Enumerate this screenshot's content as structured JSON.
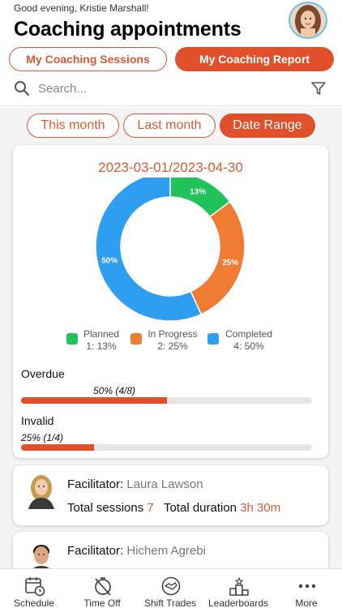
{
  "header": {
    "greeting": "Good evening, Kristie Marshall!",
    "title": "Coaching appointments"
  },
  "segments": {
    "sessions": "My Coaching Sessions",
    "report": "My Coaching Report"
  },
  "search": {
    "placeholder": "Search..."
  },
  "date_filters": [
    "This month",
    "Last month",
    "Date Range"
  ],
  "colors": {
    "accent": "#e0502b",
    "planned": "#1fc35a",
    "in_progress": "#f07c34",
    "completed": "#2e9ef0"
  },
  "chart_data": {
    "type": "pie",
    "title": "2023-03-01/2023-04-30",
    "categories": [
      "Planned",
      "In Progress",
      "Completed"
    ],
    "values": [
      13,
      25,
      50
    ],
    "slice_labels": [
      "13%",
      "25%",
      "50%"
    ],
    "legend": [
      {
        "name": "Planned",
        "detail": "1: 13%"
      },
      {
        "name": "In Progress",
        "detail": "2: 25%"
      },
      {
        "name": "Completed",
        "detail": "4: 50%"
      }
    ]
  },
  "bars": {
    "overdue": {
      "label": "Overdue",
      "text": "50% (4/8)",
      "value": 0.5
    },
    "invalid": {
      "label": "Invalid",
      "text": "25% (1/4)",
      "value": 0.25
    }
  },
  "facilitators": [
    {
      "prefix": "Facilitator:",
      "name": "Laura Lawson",
      "sessions_label": "Total sessions",
      "sessions": "7",
      "duration_label": "Total duration",
      "duration": "3h 30m"
    },
    {
      "prefix": "Facilitator:",
      "name": "Hichem Agrebi"
    }
  ],
  "tabs": [
    {
      "label": "Schedule",
      "icon": "calendar-clock-icon"
    },
    {
      "label": "Time Off",
      "icon": "stopwatch-off-icon"
    },
    {
      "label": "Shift Trades",
      "icon": "handshake-icon"
    },
    {
      "label": "Leaderboards",
      "icon": "podium-icon"
    },
    {
      "label": "More",
      "icon": "more-dots-icon"
    }
  ]
}
